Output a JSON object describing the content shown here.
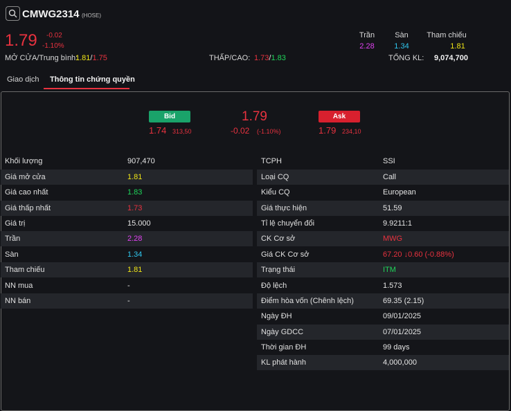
{
  "header": {
    "symbol": "CMWG2314",
    "exchange": "(HOSE)",
    "last_price": "1.79",
    "change": "-0.02",
    "change_pct": "-1.10%",
    "ceiling_label": "Trần",
    "floor_label": "Sàn",
    "reference_label": "Tham chiếu",
    "ceiling": "2.28",
    "floor": "1.34",
    "reference": "1.81",
    "open_avg_label": "MỞ CỬA/Trung bình:",
    "open": "1.81",
    "avg": "1.75",
    "low_high_label": "THẤP/CAO:",
    "low": "1.73",
    "high": "1.83",
    "total_vol_label": "TỔNG KL:",
    "total_vol": "9,074,700",
    "slash": "/"
  },
  "tabs": [
    {
      "label": "Giao dịch"
    },
    {
      "label": "Thông tin chứng quyền"
    }
  ],
  "orderbook": {
    "bid_label": "Bid",
    "ask_label": "Ask",
    "bid_price": "1.74",
    "bid_vol": "313,50",
    "ask_price": "1.79",
    "ask_vol": "234,10",
    "price": "1.79",
    "change": "-0.02",
    "change_pct": "(-1.10%)"
  },
  "left_table": [
    {
      "label": "Khối lượng",
      "value": "907,470"
    },
    {
      "label": "Giá mở cửa",
      "value": "1.81"
    },
    {
      "label": "Giá cao nhất",
      "value": "1.83"
    },
    {
      "label": "Giá thấp nhất",
      "value": "1.73"
    },
    {
      "label": "Giá trị",
      "value": "15.000"
    },
    {
      "label": "Trần",
      "value": "2.28"
    },
    {
      "label": "Sàn",
      "value": "1.34"
    },
    {
      "label": "Tham chiếu",
      "value": "1.81"
    },
    {
      "label": "NN mua",
      "value": "-"
    },
    {
      "label": "NN bán",
      "value": "-"
    }
  ],
  "right_table": [
    {
      "label": "TCPH",
      "value": "SSI"
    },
    {
      "label": "Loại CQ",
      "value": "Call"
    },
    {
      "label": "Kiểu CQ",
      "value": "European"
    },
    {
      "label": "Giá thực hiện",
      "value": "51.59"
    },
    {
      "label": "Tỉ lệ chuyển đổi",
      "value": "9.9211:1"
    },
    {
      "label": "CK Cơ sở",
      "value": "MWG"
    },
    {
      "label": "Giá CK Cơ sở",
      "value": "67.20",
      "arrow": "↓",
      "value2": "0.60 (-0.88%)"
    },
    {
      "label": "Trạng thái",
      "value": "ITM"
    },
    {
      "label": "Độ lệch",
      "value": "1.573"
    },
    {
      "label": "Điểm hòa vốn (Chênh lệch)",
      "value": "69.35 (2.15)"
    },
    {
      "label": "Ngày ĐH",
      "value": "09/01/2025"
    },
    {
      "label": "Ngày GDCC",
      "value": "07/01/2025"
    },
    {
      "label": "Thời gian ĐH",
      "value": "99 days"
    },
    {
      "label": "KL phát hành",
      "value": "4,000,000"
    }
  ],
  "colors": {
    "up": "#1fd45a",
    "down": "#e8323f",
    "reference": "#f0e516",
    "ceiling": "#e142f2",
    "floor": "#2fc6ee",
    "bid": "#1aa36a",
    "ask": "#d8202e"
  },
  "icons": {
    "search": "search-icon",
    "arrow_down": "arrow-down-icon"
  }
}
